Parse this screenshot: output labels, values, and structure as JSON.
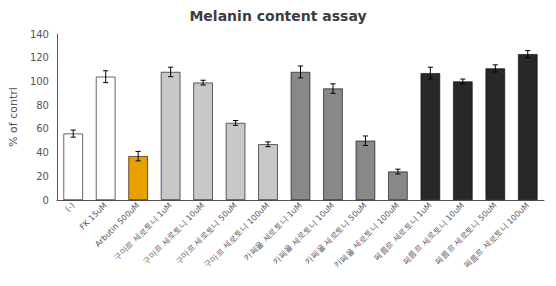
{
  "chart_data": {
    "type": "bar",
    "title": "Melanin content assay",
    "ylabel": "% of contrl",
    "categories": [
      "(-)",
      "FK 15uM",
      "Arbutin 500uM",
      "구마르 세로토니 1uM",
      "구마르 세로토니 10uM",
      "구마르 세로토니 50uM",
      "구마르 세로토니 100uM",
      "카페올 세로토니 1uM",
      "카페올 세로토니 10uM",
      "카페올 세로토니 50uM",
      "카페올 세로토니 100uM",
      "페름르 세로토니 1uM",
      "페름르 세로토니 10uM",
      "페름르 세로토니 50uM",
      "페름르 세로토니 100uM"
    ],
    "values": [
      56,
      104,
      37,
      108,
      99,
      65,
      47,
      108,
      94,
      50,
      24,
      107,
      100,
      111,
      123
    ],
    "errors": [
      3,
      5,
      4,
      4,
      2,
      2,
      2,
      5,
      4,
      4,
      2,
      5,
      2,
      3,
      3
    ],
    "colors": [
      "#ffffff",
      "#ffffff",
      "#e8a000",
      "#c8c8c8",
      "#c8c8c8",
      "#c8c8c8",
      "#c8c8c8",
      "#888888",
      "#888888",
      "#888888",
      "#888888",
      "#282828",
      "#282828",
      "#282828",
      "#282828"
    ],
    "ylim": [
      0,
      140
    ],
    "yticks": [
      0,
      20,
      40,
      60,
      80,
      100,
      120,
      140
    ],
    "grid": false
  }
}
